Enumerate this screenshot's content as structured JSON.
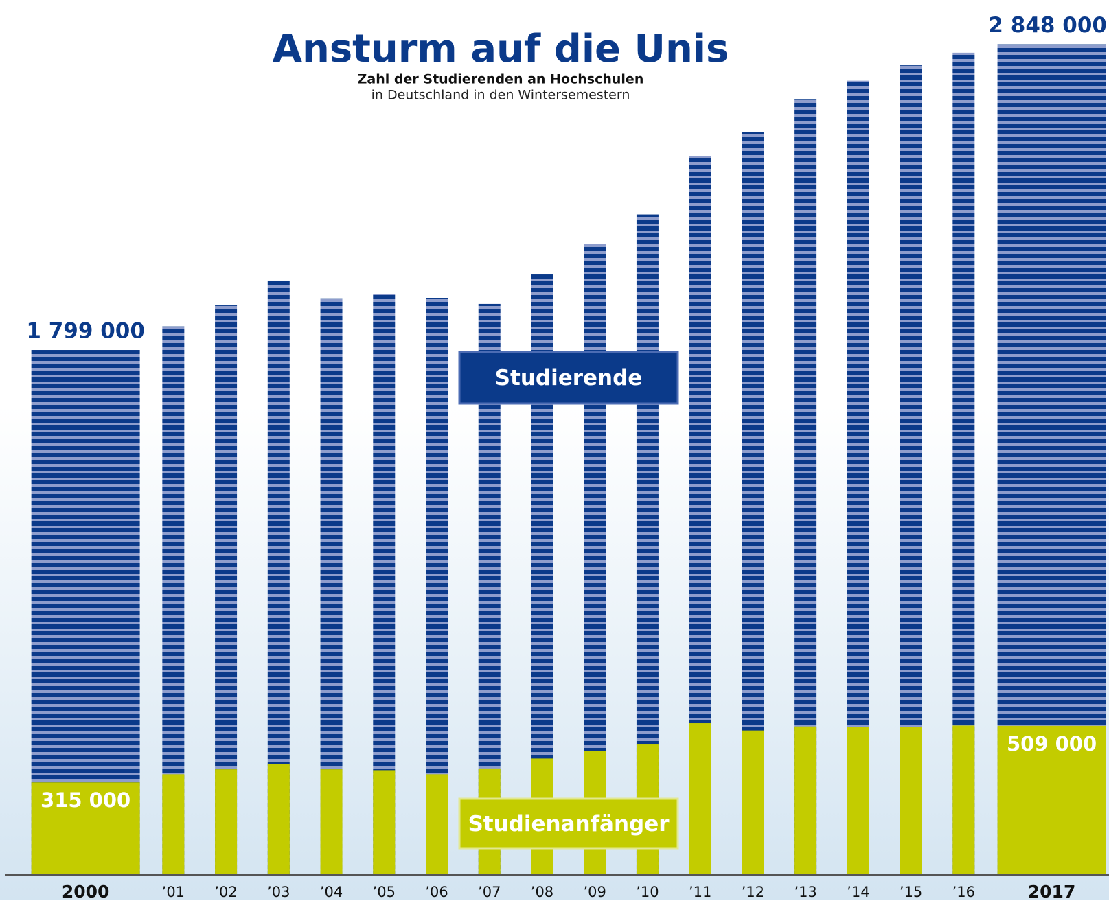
{
  "chart_data": {
    "type": "bar",
    "title": "Ansturm auf die Unis",
    "subtitle": [
      "Zahl der Studierenden an Hochschulen",
      "in Deutschland in den Wintersemestern"
    ],
    "categories": [
      "2000",
      "’01",
      "’02",
      "’03",
      "’04",
      "’05",
      "’06",
      "’07",
      "’08",
      "’09",
      "’10",
      "’11",
      "’12",
      "’13",
      "’14",
      "’15",
      "’16",
      "2017"
    ],
    "series": [
      {
        "name": "Studierende",
        "color": "#0b3a8a",
        "values": [
          1799000,
          1880000,
          1952000,
          2037000,
          1974000,
          1991000,
          1976000,
          1957000,
          2058000,
          2162000,
          2264000,
          2464000,
          2546000,
          2658000,
          2723000,
          2776000,
          2819000,
          2848000
        ],
        "value_labels": [
          "1 799 000",
          null,
          null,
          null,
          null,
          null,
          null,
          null,
          null,
          null,
          null,
          null,
          null,
          null,
          null,
          null,
          null,
          "2 848 000"
        ]
      },
      {
        "name": "Studienanfänger",
        "color": "#c3cc00",
        "values": [
          315000,
          343000,
          360000,
          377000,
          360000,
          357000,
          343000,
          363000,
          397000,
          422000,
          445000,
          518000,
          493000,
          507000,
          504000,
          504000,
          510000,
          509000
        ],
        "value_labels": [
          "315 000",
          null,
          null,
          null,
          null,
          null,
          null,
          null,
          null,
          null,
          null,
          null,
          null,
          null,
          null,
          null,
          null,
          "509 000"
        ]
      }
    ],
    "ylim": [
      0,
      3000000
    ]
  }
}
